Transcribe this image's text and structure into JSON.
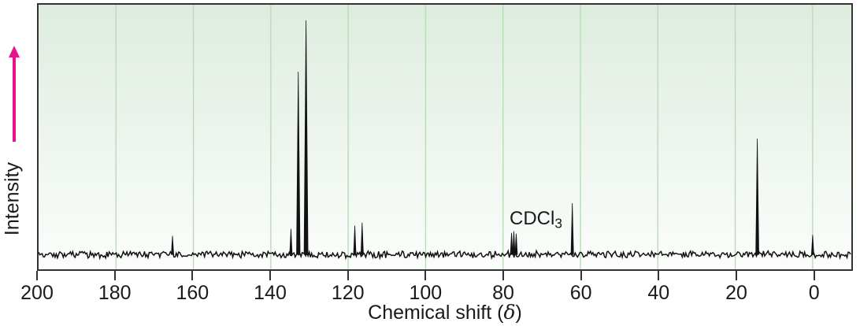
{
  "figure": {
    "ylabel": "Intensity",
    "xlabel_prefix": "Chemical shift (",
    "xlabel_delta": "δ",
    "xlabel_suffix": ")",
    "annotation_main": "CDCl",
    "annotation_sub": "3"
  },
  "colors": {
    "plot_bg_top": "#deecdf",
    "plot_bg_bottom": "#fbfdfb",
    "gridline": "#b7dcb7",
    "border": "#333333",
    "trace": "#121212",
    "text": "#1a1a1a",
    "intensity_arrow": "#ea118c"
  },
  "chart_data": {
    "type": "line",
    "subtype": "nmr-spectrum",
    "xlabel": "Chemical shift (δ)",
    "ylabel": "Intensity",
    "x_axis": {
      "max": 200,
      "min": -10,
      "direction": "reversed",
      "tick_step": 20,
      "ticks": [
        200,
        180,
        160,
        140,
        120,
        100,
        80,
        60,
        40,
        20,
        0
      ]
    },
    "y_axis": {
      "label": "Intensity",
      "ticks": [],
      "range": [
        0,
        1
      ]
    },
    "grid": "vertical",
    "annotations": [
      {
        "text": "CDCl3",
        "ppm": 77.2
      }
    ],
    "peaks": [
      {
        "ppm": 165.4,
        "intensity": 0.071
      },
      {
        "ppm": 134.8,
        "intensity": 0.097
      },
      {
        "ppm": 132.9,
        "intensity": 0.691
      },
      {
        "ppm": 130.9,
        "intensity": 0.885
      },
      {
        "ppm": 118.3,
        "intensity": 0.109
      },
      {
        "ppm": 116.4,
        "intensity": 0.121
      },
      {
        "ppm": 77.8,
        "intensity": 0.082,
        "group": "CDCl3"
      },
      {
        "ppm": 77.2,
        "intensity": 0.088,
        "group": "CDCl3"
      },
      {
        "ppm": 76.6,
        "intensity": 0.079,
        "group": "CDCl3"
      },
      {
        "ppm": 62.1,
        "intensity": 0.194
      },
      {
        "ppm": 14.3,
        "intensity": 0.438
      },
      {
        "ppm": 0.0,
        "intensity": 0.074
      }
    ],
    "baseline_noise_amplitude": 0.011
  }
}
